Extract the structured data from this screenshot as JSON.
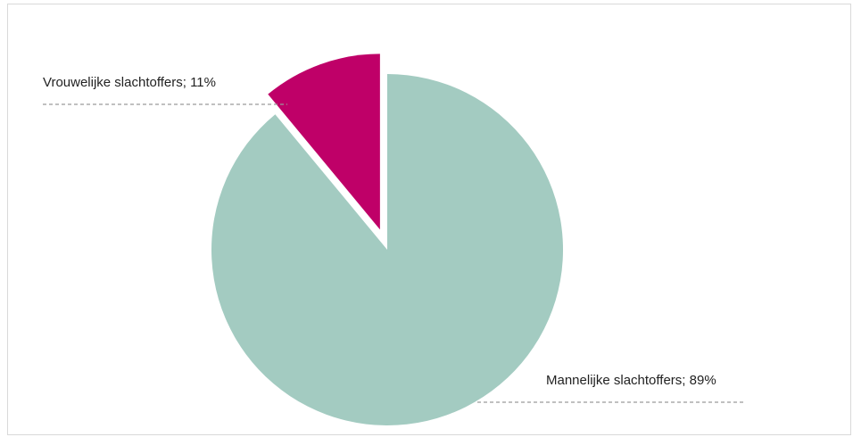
{
  "chart_data": {
    "type": "pie",
    "slices": [
      {
        "label": "Mannelijke slachtoffers; 89%",
        "value": 89,
        "color": "#a3cbc1"
      },
      {
        "label": "Vrouwelijke slachtoffers; 11%",
        "value": 11,
        "color": "#bf0068"
      }
    ],
    "start_angle_deg": 0,
    "direction": "clockwise",
    "exploded_slice": "Vrouwelijke slachtoffers; 11%",
    "legend": "none"
  }
}
